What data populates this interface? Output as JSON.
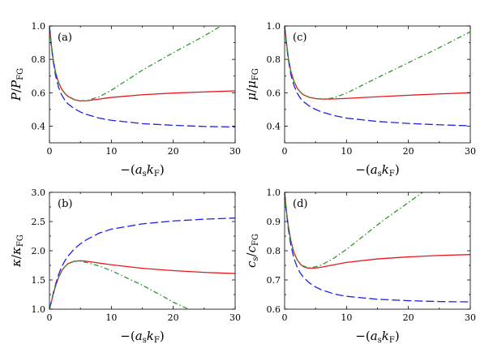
{
  "chart_data": [
    {
      "panel_tag": "(a)",
      "type": "line",
      "xlabel": {
        "prefix": "−(",
        "main": "a",
        "sub": "s",
        "mid": "k",
        "sub2": "F",
        "suffix": ")"
      },
      "ylabel": {
        "main": "P",
        "sep": "/",
        "main2": "P",
        "sub": "FG"
      },
      "xlim": [
        0,
        30
      ],
      "ylim": [
        0.3,
        1.0
      ],
      "xticks": [
        0,
        10,
        20,
        30
      ],
      "yticks": [
        0.4,
        0.6,
        0.8,
        1.0
      ],
      "ytick_labels": [
        "0.4",
        "0.6",
        "0.8",
        "1.0"
      ],
      "grid": false,
      "series": [
        {
          "color": "#e8171b",
          "dash": "solid",
          "x": [
            0,
            0.3,
            0.6,
            1,
            1.5,
            2,
            2.5,
            3,
            4,
            5,
            6,
            8,
            10,
            15,
            20,
            25,
            30
          ],
          "y": [
            1.0,
            0.89,
            0.8,
            0.72,
            0.66,
            0.62,
            0.595,
            0.578,
            0.558,
            0.551,
            0.552,
            0.562,
            0.572,
            0.588,
            0.598,
            0.605,
            0.611
          ]
        },
        {
          "color": "#1f1fe8",
          "dash": "long-dash",
          "x": [
            0,
            0.3,
            0.6,
            1,
            1.5,
            2,
            2.5,
            3,
            4,
            5,
            6,
            8,
            10,
            15,
            20,
            25,
            30
          ],
          "y": [
            1.0,
            0.88,
            0.79,
            0.7,
            0.63,
            0.585,
            0.555,
            0.533,
            0.505,
            0.485,
            0.47,
            0.448,
            0.435,
            0.415,
            0.405,
            0.398,
            0.395
          ]
        },
        {
          "color": "#2a9a2a",
          "dash": "dash-dot",
          "x": [
            0,
            0.3,
            0.6,
            1,
            1.5,
            2,
            2.5,
            3,
            4,
            5,
            6,
            8,
            10,
            15,
            20,
            25,
            27.7
          ],
          "y": [
            1.0,
            0.89,
            0.8,
            0.72,
            0.66,
            0.62,
            0.597,
            0.58,
            0.56,
            0.552,
            0.553,
            0.575,
            0.615,
            0.735,
            0.84,
            0.94,
            1.0
          ]
        }
      ]
    },
    {
      "panel_tag": "(c)",
      "type": "line",
      "xlabel": {
        "prefix": "−(",
        "main": "a",
        "sub": "s",
        "mid": "k",
        "sub2": "F",
        "suffix": ")"
      },
      "ylabel": {
        "main": "μ",
        "sep": "/",
        "main2": "μ",
        "sub": "FG"
      },
      "xlim": [
        0,
        30
      ],
      "ylim": [
        0.3,
        1.0
      ],
      "xticks": [
        0,
        10,
        20,
        30
      ],
      "yticks": [
        0.4,
        0.6,
        0.8,
        1.0
      ],
      "ytick_labels": [
        "0.4",
        "0.6",
        "0.8",
        "1.0"
      ],
      "grid": false,
      "series": [
        {
          "color": "#e8171b",
          "dash": "solid",
          "x": [
            0,
            0.3,
            0.6,
            1,
            1.5,
            2,
            2.5,
            3,
            4,
            5,
            6,
            7,
            8,
            10,
            15,
            20,
            25,
            30
          ],
          "y": [
            1.0,
            0.9,
            0.81,
            0.73,
            0.67,
            0.63,
            0.605,
            0.588,
            0.572,
            0.565,
            0.562,
            0.562,
            0.563,
            0.566,
            0.576,
            0.585,
            0.593,
            0.6
          ]
        },
        {
          "color": "#1f1fe8",
          "dash": "long-dash",
          "x": [
            0,
            0.3,
            0.6,
            1,
            1.5,
            2,
            2.5,
            3,
            4,
            5,
            6,
            8,
            10,
            15,
            20,
            25,
            30
          ],
          "y": [
            1.0,
            0.89,
            0.8,
            0.71,
            0.645,
            0.6,
            0.57,
            0.548,
            0.52,
            0.5,
            0.485,
            0.463,
            0.448,
            0.428,
            0.416,
            0.408,
            0.402
          ]
        },
        {
          "color": "#2a9a2a",
          "dash": "dash-dot",
          "x": [
            0,
            0.3,
            0.6,
            1,
            1.5,
            2,
            2.5,
            3,
            4,
            5,
            6,
            7,
            8,
            10,
            15,
            20,
            25,
            30
          ],
          "y": [
            1.0,
            0.9,
            0.81,
            0.73,
            0.67,
            0.63,
            0.606,
            0.589,
            0.573,
            0.566,
            0.563,
            0.564,
            0.57,
            0.598,
            0.69,
            0.78,
            0.87,
            0.965
          ]
        }
      ]
    },
    {
      "panel_tag": "(b)",
      "type": "line",
      "xlabel": {
        "prefix": "−(",
        "main": "a",
        "sub": "s",
        "mid": "k",
        "sub2": "F",
        "suffix": ")"
      },
      "ylabel": {
        "main": "κ",
        "sep": "/",
        "main2": "κ",
        "sub": "FG"
      },
      "xlim": [
        0,
        30
      ],
      "ylim": [
        1.0,
        3.0
      ],
      "xticks": [
        0,
        10,
        20,
        30
      ],
      "yticks": [
        1.0,
        1.5,
        2.0,
        2.5,
        3.0
      ],
      "ytick_labels": [
        "1.0",
        "1.5",
        "2.0",
        "2.5",
        "3.0"
      ],
      "grid": false,
      "series": [
        {
          "color": "#e8171b",
          "dash": "solid",
          "x": [
            0,
            0.3,
            0.6,
            1,
            1.5,
            2,
            2.5,
            3,
            4,
            5,
            6,
            8,
            10,
            15,
            20,
            25,
            30
          ],
          "y": [
            1.0,
            1.12,
            1.25,
            1.4,
            1.55,
            1.66,
            1.73,
            1.78,
            1.82,
            1.83,
            1.82,
            1.79,
            1.76,
            1.7,
            1.66,
            1.63,
            1.61
          ]
        },
        {
          "color": "#1f1fe8",
          "dash": "long-dash",
          "x": [
            0,
            0.3,
            0.6,
            1,
            1.5,
            2,
            2.5,
            3,
            4,
            5,
            6,
            8,
            10,
            15,
            20,
            25,
            30
          ],
          "y": [
            1.0,
            1.13,
            1.27,
            1.43,
            1.6,
            1.73,
            1.83,
            1.91,
            2.03,
            2.12,
            2.19,
            2.3,
            2.37,
            2.46,
            2.51,
            2.54,
            2.56
          ]
        },
        {
          "color": "#2a9a2a",
          "dash": "dash-dot",
          "x": [
            0,
            0.3,
            0.6,
            1,
            1.5,
            2,
            2.5,
            3,
            4,
            5,
            6,
            8,
            10,
            12,
            15,
            18,
            20,
            22.5
          ],
          "y": [
            1.0,
            1.12,
            1.25,
            1.4,
            1.55,
            1.66,
            1.73,
            1.78,
            1.82,
            1.82,
            1.8,
            1.74,
            1.66,
            1.56,
            1.41,
            1.24,
            1.12,
            1.0
          ]
        }
      ]
    },
    {
      "panel_tag": "(d)",
      "type": "line",
      "xlabel": {
        "prefix": "−(",
        "main": "a",
        "sub": "s",
        "mid": "k",
        "sub2": "F",
        "suffix": ")"
      },
      "ylabel": {
        "main": "c",
        "sub_a": "s",
        "sep": "/",
        "main2": "c",
        "sub": "FG"
      },
      "xlim": [
        0,
        30
      ],
      "ylim": [
        0.6,
        1.0
      ],
      "xticks": [
        0,
        10,
        20,
        30
      ],
      "yticks": [
        0.6,
        0.7,
        0.8,
        0.9,
        1.0
      ],
      "ytick_labels": [
        "0.6",
        "0.7",
        "0.8",
        "0.9",
        "1.0"
      ],
      "grid": false,
      "series": [
        {
          "color": "#e8171b",
          "dash": "solid",
          "x": [
            0,
            0.3,
            0.6,
            1,
            1.5,
            2,
            2.5,
            3,
            3.5,
            4,
            5,
            6,
            8,
            10,
            15,
            20,
            25,
            30
          ],
          "y": [
            1.0,
            0.935,
            0.885,
            0.835,
            0.795,
            0.77,
            0.755,
            0.746,
            0.742,
            0.74,
            0.741,
            0.744,
            0.752,
            0.76,
            0.772,
            0.779,
            0.784,
            0.787
          ]
        },
        {
          "color": "#1f1fe8",
          "dash": "long-dash",
          "x": [
            0,
            0.3,
            0.6,
            1,
            1.5,
            2,
            2.5,
            3,
            4,
            5,
            6,
            8,
            10,
            15,
            20,
            25,
            30
          ],
          "y": [
            1.0,
            0.93,
            0.875,
            0.82,
            0.775,
            0.745,
            0.725,
            0.71,
            0.69,
            0.676,
            0.666,
            0.652,
            0.644,
            0.634,
            0.629,
            0.626,
            0.625
          ]
        },
        {
          "color": "#2a9a2a",
          "dash": "dash-dot",
          "x": [
            0,
            0.3,
            0.6,
            1,
            1.5,
            2,
            2.5,
            3,
            3.5,
            4,
            5,
            6,
            8,
            10,
            13,
            16,
            19,
            22.3
          ],
          "y": [
            1.0,
            0.935,
            0.885,
            0.835,
            0.795,
            0.77,
            0.756,
            0.748,
            0.744,
            0.742,
            0.745,
            0.752,
            0.775,
            0.805,
            0.855,
            0.905,
            0.95,
            1.0
          ]
        }
      ]
    }
  ]
}
